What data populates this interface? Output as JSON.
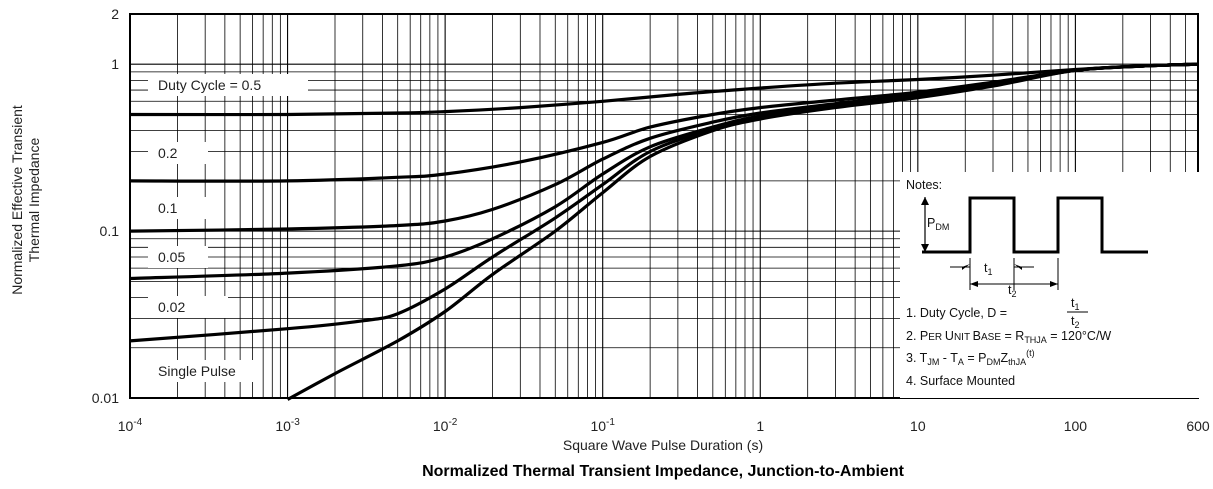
{
  "chart_data": {
    "type": "line",
    "title": "Normalized Thermal Transient Impedance, Junction-to-Ambient",
    "xlabel": "Square Wave Pulse Duration (s)",
    "ylabel": [
      "Normalized Effective Transient",
      "Thermal Impedance"
    ],
    "x_scale": "log",
    "y_scale": "log",
    "xlim": [
      0.0001,
      600
    ],
    "ylim": [
      0.01,
      2
    ],
    "x_ticks": [
      {
        "value": 0.0001,
        "base": "10",
        "exp": "-4"
      },
      {
        "value": 0.001,
        "base": "10",
        "exp": "-3"
      },
      {
        "value": 0.01,
        "base": "10",
        "exp": "-2"
      },
      {
        "value": 0.1,
        "base": "10",
        "exp": "-1"
      },
      {
        "value": 1,
        "base": "1",
        "exp": ""
      },
      {
        "value": 10,
        "base": "10",
        "exp": ""
      },
      {
        "value": 100,
        "base": "100",
        "exp": ""
      },
      {
        "value": 600,
        "base": "600",
        "exp": ""
      }
    ],
    "y_ticks": [
      {
        "value": 0.01,
        "label": "0.01"
      },
      {
        "value": 0.1,
        "label": "0.1"
      },
      {
        "value": 1,
        "label": "1"
      },
      {
        "value": 2,
        "label": "2"
      }
    ],
    "grid": true,
    "series": [
      {
        "name": "Duty Cycle = 0.5",
        "x": [
          0.0001,
          0.001,
          0.005,
          0.01,
          0.03,
          0.1,
          0.3,
          1,
          3,
          10,
          30,
          100,
          300,
          600
        ],
        "y": [
          0.5,
          0.5,
          0.51,
          0.52,
          0.55,
          0.6,
          0.66,
          0.72,
          0.77,
          0.81,
          0.86,
          0.93,
          0.98,
          1.0
        ]
      },
      {
        "name": "0.2",
        "x": [
          0.0001,
          0.001,
          0.005,
          0.01,
          0.03,
          0.1,
          0.2,
          0.5,
          1,
          3,
          10,
          30,
          100,
          300,
          600
        ],
        "y": [
          0.2,
          0.2,
          0.21,
          0.22,
          0.26,
          0.34,
          0.42,
          0.5,
          0.55,
          0.61,
          0.68,
          0.78,
          0.92,
          0.98,
          1.0
        ]
      },
      {
        "name": "0.1",
        "x": [
          0.0001,
          0.001,
          0.005,
          0.01,
          0.02,
          0.05,
          0.1,
          0.2,
          0.5,
          1,
          3,
          10,
          30,
          100,
          300,
          600
        ],
        "y": [
          0.1,
          0.103,
          0.108,
          0.115,
          0.135,
          0.19,
          0.27,
          0.36,
          0.45,
          0.51,
          0.58,
          0.66,
          0.77,
          0.92,
          0.98,
          1.0
        ]
      },
      {
        "name": "0.05",
        "x": [
          0.0001,
          0.001,
          0.005,
          0.01,
          0.02,
          0.05,
          0.1,
          0.2,
          0.5,
          1,
          3,
          10,
          30,
          100,
          300,
          600
        ],
        "y": [
          0.052,
          0.056,
          0.062,
          0.07,
          0.09,
          0.14,
          0.22,
          0.32,
          0.42,
          0.49,
          0.57,
          0.65,
          0.76,
          0.92,
          0.98,
          1.0
        ]
      },
      {
        "name": "0.02",
        "x": [
          0.0001,
          0.001,
          0.003,
          0.005,
          0.01,
          0.02,
          0.05,
          0.1,
          0.2,
          0.5,
          1,
          3,
          10,
          30,
          100,
          300,
          600
        ],
        "y": [
          0.022,
          0.026,
          0.029,
          0.032,
          0.045,
          0.07,
          0.12,
          0.19,
          0.3,
          0.41,
          0.48,
          0.56,
          0.64,
          0.75,
          0.92,
          0.98,
          1.0
        ]
      },
      {
        "name": "Single Pulse",
        "x": [
          0.001,
          0.002,
          0.005,
          0.01,
          0.02,
          0.05,
          0.1,
          0.2,
          0.5,
          1,
          3,
          10,
          30,
          100,
          300,
          600
        ],
        "y": [
          0.0098,
          0.014,
          0.022,
          0.033,
          0.055,
          0.1,
          0.17,
          0.28,
          0.4,
          0.47,
          0.55,
          0.63,
          0.74,
          0.92,
          0.98,
          1.0
        ]
      }
    ],
    "curve_labels": [
      "Duty Cycle = 0.5",
      "0.2",
      "0.1",
      "0.05",
      "0.02",
      "Single Pulse"
    ],
    "notes": {
      "heading": "Notes:",
      "pdm_main": "P",
      "pdm_sub": "DM",
      "t1_main": "t",
      "t1_sub": "1",
      "t2_main": "t",
      "t2_sub": "2",
      "note1_prefix": "1. Duty Cycle, D =",
      "note2": {
        "p1": "2. P",
        "p2": "ER ",
        "p3": "U",
        "p4": "NIT ",
        "p5": "B",
        "p6": "ASE",
        "p7": " = R",
        "sub": "THJA",
        "p8": " = 120°C/W"
      },
      "note3": {
        "p1": "3. T",
        "s1": "JM",
        "p2": " - T",
        "s2": "A",
        "p3": " = P",
        "s3": "DM",
        "p4": "Z",
        "s4": "thJA",
        "sup": "(t)"
      },
      "note4": "4. Surface Mounted"
    }
  }
}
